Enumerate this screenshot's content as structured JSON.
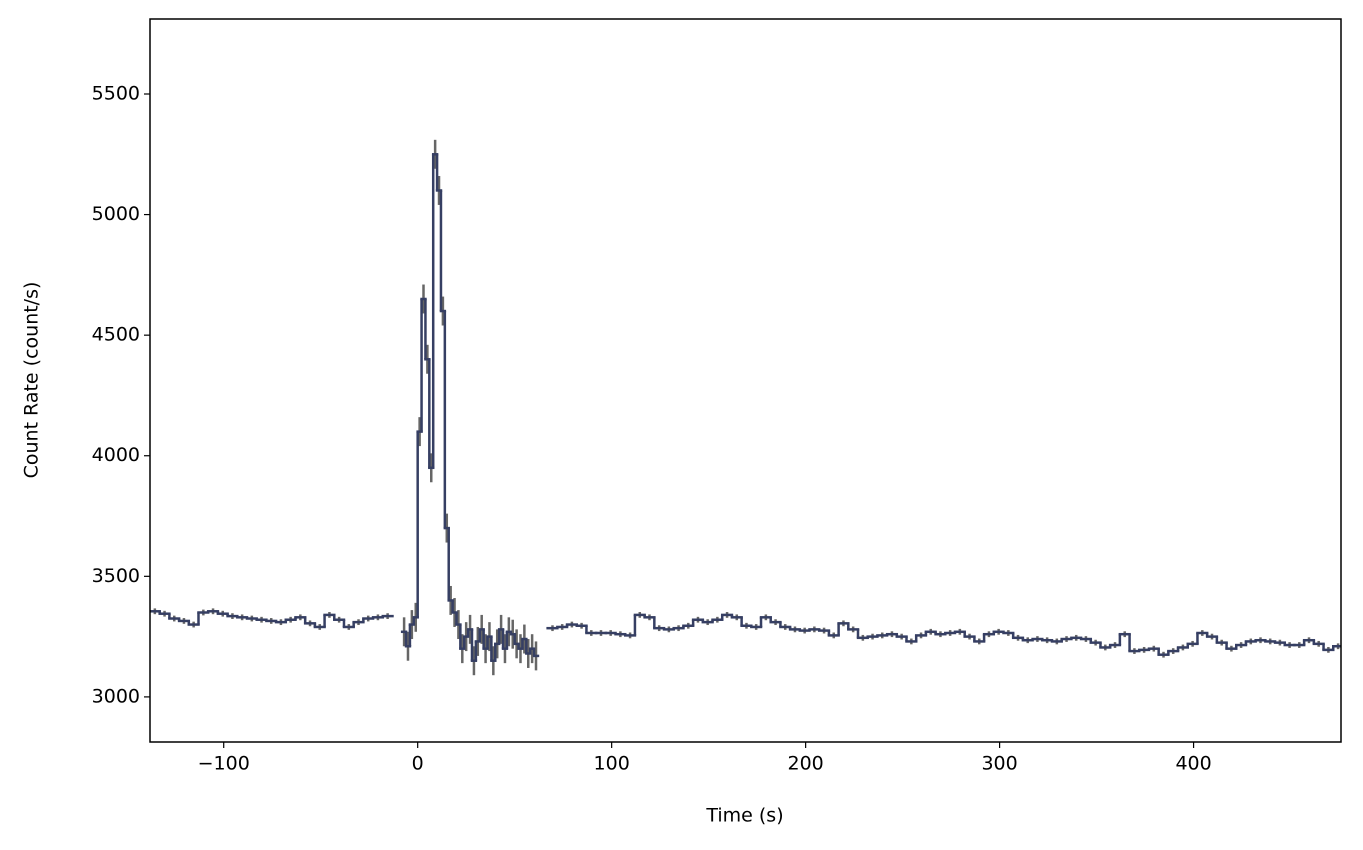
{
  "chart_data": {
    "type": "step",
    "xlabel": "Time (s)",
    "ylabel": "Count Rate (count/s)",
    "xlim": [
      -138,
      476
    ],
    "ylim": [
      2813,
      5811
    ],
    "xticks": [
      {
        "value": -100,
        "label": "−100"
      },
      0,
      100,
      200,
      300,
      400
    ],
    "yticks": [
      3000,
      3500,
      4000,
      4500,
      5000,
      5500
    ],
    "color": "#363f63",
    "error_color": "#666666",
    "segments": [
      {
        "bins": [
          -138,
          -133,
          -128,
          -123,
          -118,
          -113,
          -108,
          -103,
          -98,
          -93,
          -88,
          -83,
          -78,
          -73,
          -68,
          -63,
          -58,
          -53,
          -48,
          -43,
          -38,
          -33,
          -28,
          -23,
          -18,
          -13
        ],
        "values": [
          3355,
          3345,
          3325,
          3315,
          3300,
          3350,
          3355,
          3345,
          3335,
          3330,
          3325,
          3320,
          3315,
          3310,
          3320,
          3330,
          3305,
          3290,
          3340,
          3320,
          3290,
          3310,
          3325,
          3330,
          3335
        ],
        "yerr": 12
      },
      {
        "bins": [
          -8,
          -6,
          -4,
          -2,
          0,
          2,
          4,
          6,
          8,
          10,
          12,
          14,
          16,
          18,
          20,
          22,
          24,
          26,
          28,
          30,
          32,
          34,
          36,
          38,
          40,
          42,
          44,
          46,
          48,
          50,
          52,
          54,
          56,
          58,
          60,
          62
        ],
        "values": [
          3270,
          3210,
          3300,
          3330,
          4100,
          4650,
          4400,
          3950,
          5250,
          5100,
          4600,
          3700,
          3400,
          3350,
          3300,
          3200,
          3250,
          3280,
          3150,
          3230,
          3280,
          3200,
          3250,
          3150,
          3220,
          3280,
          3200,
          3270,
          3260,
          3220,
          3200,
          3240,
          3180,
          3200,
          3170
        ],
        "yerr": 60
      },
      {
        "bins": [
          67,
          72,
          77,
          82,
          87,
          92,
          97,
          102,
          107,
          112,
          117,
          122,
          127,
          132,
          137,
          142,
          147,
          152,
          157,
          162,
          167,
          172,
          177,
          182,
          187,
          192,
          197,
          202,
          207,
          212,
          217,
          222,
          227,
          232,
          237,
          242,
          247,
          252,
          257,
          262,
          267,
          272,
          277,
          282,
          287,
          292,
          297,
          302,
          307,
          312,
          317,
          322,
          327,
          332,
          337,
          342,
          347,
          352,
          357,
          362,
          367,
          372,
          377,
          382,
          387,
          392,
          397,
          402,
          407,
          412,
          417,
          422,
          427,
          432,
          437,
          442,
          447,
          452,
          457,
          462,
          467,
          472,
          477
        ],
        "values": [
          3285,
          3290,
          3300,
          3295,
          3265,
          3265,
          3265,
          3260,
          3255,
          3340,
          3330,
          3285,
          3280,
          3285,
          3295,
          3320,
          3310,
          3320,
          3340,
          3330,
          3295,
          3290,
          3330,
          3310,
          3290,
          3280,
          3275,
          3280,
          3275,
          3255,
          3305,
          3280,
          3245,
          3250,
          3255,
          3260,
          3250,
          3230,
          3255,
          3270,
          3260,
          3265,
          3270,
          3250,
          3230,
          3260,
          3270,
          3265,
          3245,
          3235,
          3240,
          3235,
          3230,
          3240,
          3245,
          3240,
          3225,
          3205,
          3215,
          3260,
          3190,
          3195,
          3200,
          3175,
          3190,
          3205,
          3220,
          3265,
          3250,
          3225,
          3200,
          3215,
          3230,
          3235,
          3230,
          3225,
          3215,
          3215,
          3235,
          3220,
          3195,
          3210
        ],
        "yerr": 12
      }
    ]
  }
}
